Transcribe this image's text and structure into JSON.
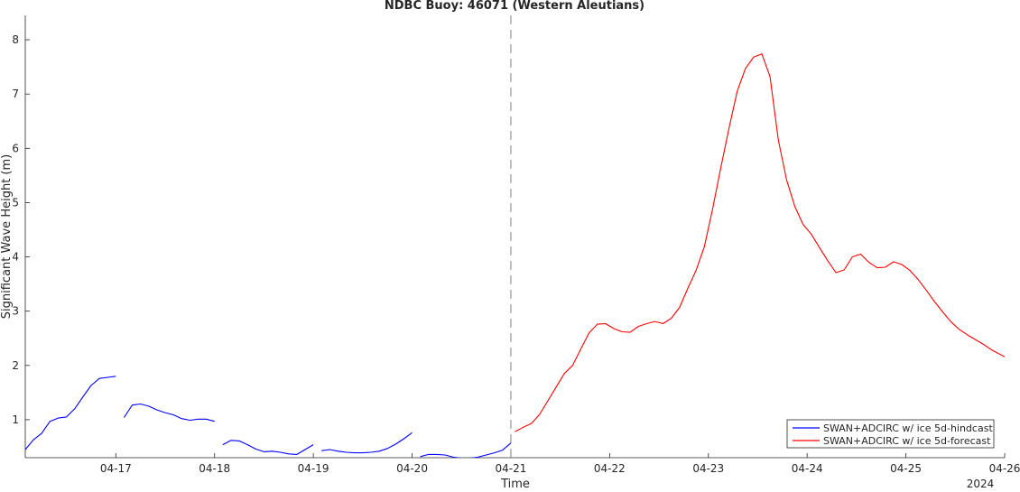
{
  "chart_data": {
    "type": "line",
    "title": "NDBC Buoy: 46071 (Western Aleutians)",
    "xlabel": "Time",
    "ylabel": "Significant Wave Height (m)",
    "x_year_label": "2024",
    "xlim": [
      "04-16 02:00",
      "04-26 00:00"
    ],
    "ylim": [
      0.3,
      8.45
    ],
    "xticks": [
      "04-17",
      "04-18",
      "04-19",
      "04-20",
      "04-21",
      "04-22",
      "04-23",
      "04-24",
      "04-25",
      "04-26"
    ],
    "yticks": [
      "1",
      "2",
      "3",
      "4",
      "5",
      "6",
      "7",
      "8"
    ],
    "forecast_start": "04-21 00:00",
    "grid": false,
    "legend_position": "bottom-right",
    "series": [
      {
        "name": "SWAN+ADCIRC w/ ice 5d-hindcast",
        "color": "#0000ff",
        "segments": [
          [
            [
              "04-16 00:00",
              0.4
            ],
            [
              "04-16 02:00",
              0.45
            ],
            [
              "04-16 04:00",
              0.63
            ],
            [
              "04-16 06:00",
              0.75
            ],
            [
              "04-16 08:00",
              0.97
            ],
            [
              "04-16 10:00",
              1.03
            ],
            [
              "04-16 12:00",
              1.05
            ],
            [
              "04-16 14:00",
              1.2
            ],
            [
              "04-16 16:00",
              1.42
            ],
            [
              "04-16 18:00",
              1.63
            ],
            [
              "04-16 20:00",
              1.76
            ],
            [
              "04-16 22:00",
              1.78
            ],
            [
              "04-17 00:00",
              1.8
            ]
          ],
          [
            [
              "04-17 02:00",
              1.04
            ],
            [
              "04-17 04:00",
              1.27
            ],
            [
              "04-17 06:00",
              1.29
            ],
            [
              "04-17 08:00",
              1.25
            ],
            [
              "04-17 10:00",
              1.18
            ],
            [
              "04-17 12:00",
              1.13
            ],
            [
              "04-17 14:00",
              1.09
            ],
            [
              "04-17 16:00",
              1.02
            ],
            [
              "04-17 18:00",
              0.99
            ],
            [
              "04-17 20:00",
              1.01
            ],
            [
              "04-17 22:00",
              1.01
            ],
            [
              "04-18 00:00",
              0.97
            ]
          ],
          [
            [
              "04-18 02:00",
              0.54
            ],
            [
              "04-18 04:00",
              0.62
            ],
            [
              "04-18 06:00",
              0.61
            ],
            [
              "04-18 08:00",
              0.54
            ],
            [
              "04-18 10:00",
              0.46
            ],
            [
              "04-18 12:00",
              0.41
            ],
            [
              "04-18 14:00",
              0.42
            ],
            [
              "04-18 16:00",
              0.4
            ],
            [
              "04-18 18:00",
              0.37
            ],
            [
              "04-18 20:00",
              0.36
            ],
            [
              "04-18 22:00",
              0.45
            ],
            [
              "04-19 00:00",
              0.54
            ]
          ],
          [
            [
              "04-19 02:00",
              0.43
            ],
            [
              "04-19 04:00",
              0.45
            ],
            [
              "04-19 06:00",
              0.42
            ],
            [
              "04-19 08:00",
              0.4
            ],
            [
              "04-19 10:00",
              0.39
            ],
            [
              "04-19 12:00",
              0.39
            ],
            [
              "04-19 14:00",
              0.4
            ],
            [
              "04-19 16:00",
              0.42
            ],
            [
              "04-19 18:00",
              0.47
            ],
            [
              "04-19 20:00",
              0.55
            ],
            [
              "04-19 22:00",
              0.65
            ],
            [
              "04-20 00:00",
              0.76
            ]
          ],
          [
            [
              "04-20 02:00",
              0.32
            ],
            [
              "04-20 04:00",
              0.36
            ],
            [
              "04-20 06:00",
              0.36
            ],
            [
              "04-20 08:00",
              0.35
            ],
            [
              "04-20 10:00",
              0.31
            ],
            [
              "04-20 12:00",
              0.29
            ],
            [
              "04-20 14:00",
              0.29
            ],
            [
              "04-20 16:00",
              0.31
            ],
            [
              "04-20 18:00",
              0.35
            ],
            [
              "04-20 20:00",
              0.39
            ],
            [
              "04-20 22:00",
              0.44
            ],
            [
              "04-21 00:00",
              0.57
            ]
          ]
        ]
      },
      {
        "name": "SWAN+ADCIRC w/ ice 5d-forecast",
        "color": "#ff0000",
        "segments": [
          [
            [
              "04-21 01:00",
              0.78
            ],
            [
              "04-21 03:00",
              0.86
            ],
            [
              "04-21 05:00",
              0.93
            ],
            [
              "04-21 07:00",
              1.1
            ],
            [
              "04-21 09:00",
              1.35
            ],
            [
              "04-21 11:00",
              1.6
            ],
            [
              "04-21 13:00",
              1.85
            ],
            [
              "04-21 15:00",
              2.0
            ],
            [
              "04-21 17:00",
              2.3
            ],
            [
              "04-21 19:00",
              2.6
            ],
            [
              "04-21 21:00",
              2.76
            ],
            [
              "04-21 23:00",
              2.77
            ],
            [
              "04-22 01:00",
              2.68
            ],
            [
              "04-22 03:00",
              2.62
            ],
            [
              "04-22 05:00",
              2.61
            ],
            [
              "04-22 07:00",
              2.72
            ],
            [
              "04-22 09:00",
              2.77
            ],
            [
              "04-22 11:00",
              2.81
            ],
            [
              "04-22 13:00",
              2.77
            ],
            [
              "04-22 15:00",
              2.87
            ],
            [
              "04-22 17:00",
              3.07
            ],
            [
              "04-22 19:00",
              3.42
            ],
            [
              "04-22 21:00",
              3.75
            ],
            [
              "04-22 23:00",
              4.18
            ],
            [
              "04-23 01:00",
              4.87
            ],
            [
              "04-23 03:00",
              5.63
            ],
            [
              "04-23 05:00",
              6.37
            ],
            [
              "04-23 07:00",
              7.05
            ],
            [
              "04-23 09:00",
              7.47
            ],
            [
              "04-23 11:00",
              7.68
            ],
            [
              "04-23 13:00",
              7.74
            ],
            [
              "04-23 15:00",
              7.32
            ],
            [
              "04-23 17:00",
              6.15
            ],
            [
              "04-23 19:00",
              5.42
            ],
            [
              "04-23 21:00",
              4.93
            ],
            [
              "04-23 23:00",
              4.6
            ],
            [
              "04-24 01:00",
              4.42
            ],
            [
              "04-24 03:00",
              4.17
            ],
            [
              "04-24 05:00",
              3.93
            ],
            [
              "04-24 07:00",
              3.71
            ],
            [
              "04-24 09:00",
              3.76
            ],
            [
              "04-24 11:00",
              4.0
            ],
            [
              "04-24 13:00",
              4.05
            ],
            [
              "04-24 15:00",
              3.9
            ],
            [
              "04-24 17:00",
              3.8
            ],
            [
              "04-24 19:00",
              3.81
            ],
            [
              "04-24 21:00",
              3.91
            ],
            [
              "04-24 23:00",
              3.86
            ],
            [
              "04-25 01:00",
              3.75
            ],
            [
              "04-25 03:00",
              3.58
            ],
            [
              "04-25 05:00",
              3.38
            ],
            [
              "04-25 07:00",
              3.17
            ],
            [
              "04-25 09:00",
              2.98
            ],
            [
              "04-25 11:00",
              2.8
            ],
            [
              "04-25 13:00",
              2.66
            ],
            [
              "04-25 15:00",
              2.56
            ],
            [
              "04-25 17:00",
              2.47
            ],
            [
              "04-25 19:00",
              2.38
            ],
            [
              "04-25 21:00",
              2.28
            ],
            [
              "04-25 23:00",
              2.2
            ],
            [
              "04-26 00:00",
              2.16
            ]
          ]
        ]
      }
    ]
  }
}
